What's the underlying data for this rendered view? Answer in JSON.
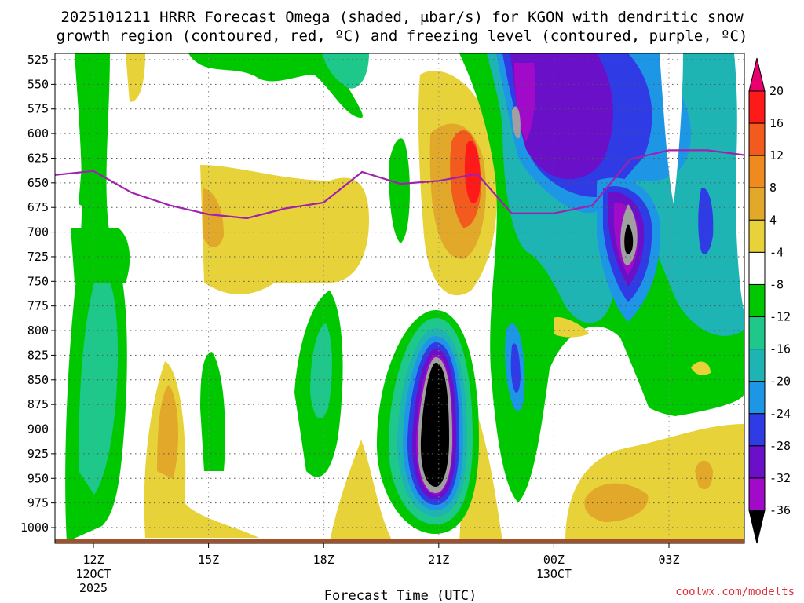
{
  "chart_data": {
    "type": "heatmap",
    "title": "2025101211 HRRR Forecast Omega (shaded, μbar/s) for KGON with dendritic snow",
    "subtitle": "growth region (contoured, red, ºC) and freezing level (contoured, purple, ºC)",
    "xlabel": "Forecast Time (UTC)",
    "ylabel": "",
    "credit": "coolwx.com/modelts",
    "y_ticks": [
      "525",
      "550",
      "575",
      "600",
      "625",
      "650",
      "675",
      "700",
      "725",
      "750",
      "775",
      "800",
      "825",
      "850",
      "875",
      "900",
      "925",
      "950",
      "975",
      "1000"
    ],
    "y_range": [
      525,
      1000
    ],
    "x_ticks": [
      {
        "label": "12Z",
        "date1": "12OCT",
        "date2": "2025",
        "hour": 12
      },
      {
        "label": "15Z",
        "date1": "",
        "date2": "",
        "hour": 15
      },
      {
        "label": "18Z",
        "date1": "",
        "date2": "",
        "hour": 18
      },
      {
        "label": "21Z",
        "date1": "",
        "date2": "",
        "hour": 21
      },
      {
        "label": "00Z",
        "date1": "13OCT",
        "date2": "",
        "hour": 24
      },
      {
        "label": "03Z",
        "date1": "",
        "date2": "",
        "hour": 27
      }
    ],
    "x_range": [
      11,
      29
    ],
    "colorbar": {
      "labels": [
        "20",
        "16",
        "12",
        "8",
        "4",
        "-4",
        "-8",
        "-12",
        "-16",
        "-20",
        "-24",
        "-28",
        "-32",
        "-36"
      ],
      "colors": [
        "#e8006e",
        "#ff1a1a",
        "#f25a1e",
        "#ee8a1e",
        "#e2a82a",
        "#e8d23a",
        "#ffffff",
        "#00c800",
        "#1ec88a",
        "#1eb4b4",
        "#1e96e6",
        "#2f3ce6",
        "#6a10c8",
        "#a10ac8",
        "#a0a0a0",
        "#000000"
      ]
    },
    "freezing_level": {
      "label": "0 ºC",
      "color": "#a020b0",
      "points": [
        {
          "hour": 11.0,
          "p": 642
        },
        {
          "hour": 12.0,
          "p": 638
        },
        {
          "hour": 13.0,
          "p": 660
        },
        {
          "hour": 14.0,
          "p": 673
        },
        {
          "hour": 15.0,
          "p": 682
        },
        {
          "hour": 16.0,
          "p": 686
        },
        {
          "hour": 17.0,
          "p": 676
        },
        {
          "hour": 18.0,
          "p": 670
        },
        {
          "hour": 19.0,
          "p": 639
        },
        {
          "hour": 20.0,
          "p": 651
        },
        {
          "hour": 21.0,
          "p": 648
        },
        {
          "hour": 22.0,
          "p": 641
        },
        {
          "hour": 22.9,
          "p": 681
        },
        {
          "hour": 24.0,
          "p": 681
        },
        {
          "hour": 25.0,
          "p": 673
        },
        {
          "hour": 26.0,
          "p": 626
        },
        {
          "hour": 27.0,
          "p": 617
        },
        {
          "hour": 28.0,
          "p": 617
        },
        {
          "hour": 29.0,
          "p": 622
        }
      ]
    },
    "omega_blobs": [
      {
        "hour": 21.0,
        "p": 872,
        "rh": 1.55,
        "rp": 190,
        "value": -36
      },
      {
        "hour": 21.0,
        "p": 872,
        "rh": 1.25,
        "rp": 150,
        "value": -40
      },
      {
        "hour": 22.9,
        "p": 660,
        "rh": 2.2,
        "rp": 120,
        "value": -24
      },
      {
        "hour": 25.9,
        "p": 690,
        "rh": 0.6,
        "rp": 70,
        "value": -36
      },
      {
        "hour": 23.0,
        "p": 575,
        "rh": 0.35,
        "rp": 25,
        "value": -32
      },
      {
        "hour": 22.0,
        "p": 630,
        "rh": 0.45,
        "rp": 90,
        "value": 16
      },
      {
        "hour": 26.0,
        "p": 950,
        "rh": 1.9,
        "rp": 70,
        "value": 6
      },
      {
        "hour": 14.0,
        "p": 870,
        "rh": 0.8,
        "rp": 120,
        "value": 7
      },
      {
        "hour": 12.2,
        "p": 750,
        "rh": 0.9,
        "rp": 250,
        "value": -12
      },
      {
        "hour": 14.0,
        "p": 665,
        "rh": 1.0,
        "rp": 70,
        "value": 5
      },
      {
        "hour": 19.5,
        "p": 700,
        "rh": 1.3,
        "rp": 130,
        "value": 5
      },
      {
        "hour": 18.0,
        "p": 800,
        "rh": 0.6,
        "rp": 130,
        "value": -8
      },
      {
        "hour": 23.0,
        "p": 820,
        "rh": 0.5,
        "rp": 140,
        "value": -16
      }
    ]
  }
}
